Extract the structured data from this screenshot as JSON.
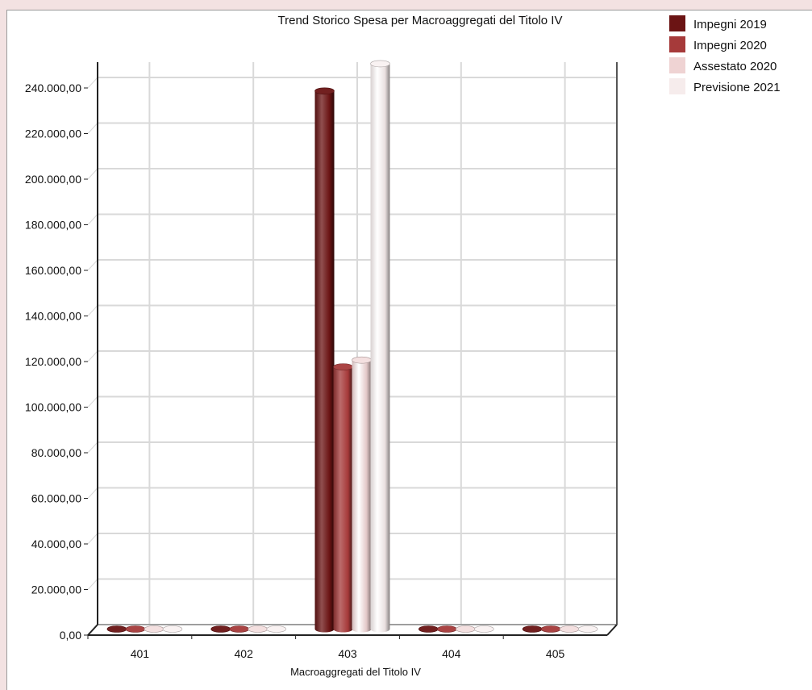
{
  "chart_data": {
    "type": "bar",
    "title": "Trend Storico Spesa per Macroaggregati del Titolo IV",
    "xlabel": "Macroaggregati del Titolo IV",
    "ylabel": "",
    "categories": [
      "401",
      "402",
      "403",
      "404",
      "405"
    ],
    "series": [
      {
        "name": "Impegni 2019",
        "color": "#6b1414",
        "values": [
          0,
          0,
          236000,
          0,
          0
        ]
      },
      {
        "name": "Impegni 2020",
        "color": "#a63a3a",
        "values": [
          0,
          0,
          115000,
          0,
          0
        ]
      },
      {
        "name": "Assestato 2020",
        "color": "#efd3d3",
        "values": [
          0,
          0,
          118000,
          0,
          0
        ]
      },
      {
        "name": "Previsione 2021",
        "color": "#f6ecec",
        "values": [
          0,
          0,
          248000,
          0,
          0
        ]
      }
    ],
    "ylim": [
      0,
      240000
    ],
    "yticks": [
      0,
      20000,
      40000,
      60000,
      80000,
      100000,
      120000,
      140000,
      160000,
      180000,
      200000,
      220000,
      240000
    ],
    "ytick_labels": [
      "0,00",
      "20.000,00",
      "40.000,00",
      "60.000,00",
      "80.000,00",
      "100.000,00",
      "120.000,00",
      "140.000,00",
      "160.000,00",
      "180.000,00",
      "200.000,00",
      "220.000,00",
      "240.000,00"
    ],
    "grid": true,
    "legend": "top-right",
    "style": "3d-cylinder"
  }
}
